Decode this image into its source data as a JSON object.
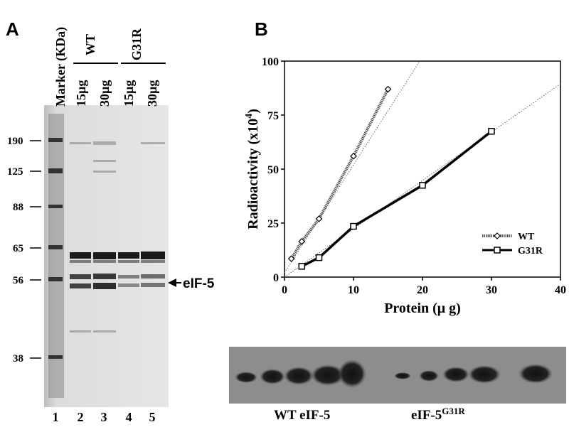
{
  "panel_a": {
    "label": "A",
    "marker_header": "Marker (KDa)",
    "groups": [
      "WT",
      "G31R"
    ],
    "amounts": [
      "15µg",
      "30µg",
      "15µg",
      "30µg"
    ],
    "markers": [
      "190",
      "125",
      "88",
      "65",
      "56",
      "38"
    ],
    "arrow_label": "eIF-5",
    "lanes": [
      "1",
      "2",
      "3",
      "4",
      "5"
    ]
  },
  "panel_b_label": "B",
  "chart_data": {
    "type": "line",
    "xlabel": "Protein (μ g)",
    "ylabel": "Radioactivity (x10",
    "ylabel_sup": "4",
    "ylabel_end": ")",
    "xlim": [
      0,
      40
    ],
    "xticks": [
      0,
      10,
      20,
      30,
      40
    ],
    "ylim": [
      0,
      100
    ],
    "yticks": [
      0,
      25,
      50,
      75,
      100
    ],
    "legend": "lower right",
    "series": [
      {
        "name": "WT",
        "color": "#555555",
        "marker": "diamond",
        "dashed": true,
        "x": [
          1,
          2.5,
          5,
          10,
          15
        ],
        "values": [
          8.5,
          16.5,
          27,
          56,
          87
        ]
      },
      {
        "name": "G31R",
        "color": "#000000",
        "marker": "square",
        "dashed": false,
        "x": [
          2.5,
          5,
          10,
          20,
          30
        ],
        "values": [
          5,
          9,
          23.5,
          42.5,
          67.5
        ]
      }
    ],
    "fits": [
      {
        "color": "#666666",
        "x": [
          0,
          19.6
        ],
        "values": [
          2,
          100
        ]
      },
      {
        "color": "#666666",
        "x": [
          0,
          40
        ],
        "values": [
          0,
          89.5
        ]
      }
    ]
  },
  "blot": {
    "left_label": "WT eIF-5",
    "right_label": "eIF-5",
    "right_label_sup": "G31R"
  }
}
